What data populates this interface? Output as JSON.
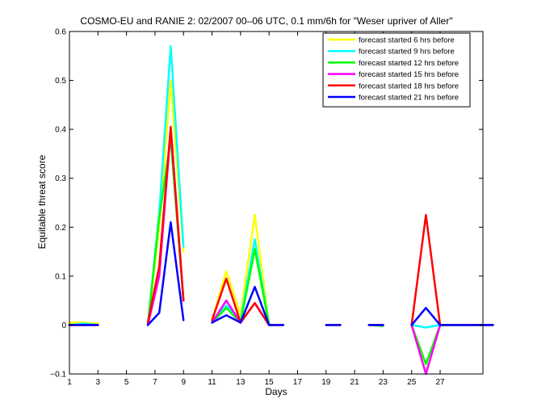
{
  "chart_data": {
    "type": "line",
    "title": "COSMO-EU and RANIE 2: 02/2007 00–06 UTC, 0.1 mm/6h for \"Weser upriver of Aller\"",
    "xlabel": "Days",
    "ylabel": "Equitable threat score",
    "xlim": [
      1,
      30
    ],
    "ylim": [
      -0.1,
      0.6
    ],
    "xticks": [
      1,
      3,
      5,
      7,
      9,
      11,
      13,
      15,
      17,
      19,
      21,
      23,
      25,
      27
    ],
    "yticks": [
      -0.1,
      0,
      0.1,
      0.2,
      0.3,
      0.4,
      0.5,
      0.6
    ],
    "ytick_labels": [
      "−0.1",
      "0",
      "0.1",
      "0.2",
      "0.3",
      "0.4",
      "0.5",
      "0.6"
    ],
    "legend_position": "top-right",
    "series": [
      {
        "name": "forecast started 6 hrs before",
        "color": "#ffff00",
        "segments": [
          [
            [
              1,
              0.005
            ],
            [
              2,
              0.005
            ],
            [
              3,
              0.003
            ]
          ],
          [
            [
              6.5,
              0
            ],
            [
              7.3,
              0.2
            ],
            [
              8.1,
              0.5
            ],
            [
              9,
              0.15
            ]
          ],
          [
            [
              11,
              0.01
            ],
            [
              12,
              0.11
            ],
            [
              13,
              0.02
            ],
            [
              14,
              0.225
            ],
            [
              15,
              0
            ],
            [
              16,
              0
            ]
          ],
          [
            [
              19,
              0
            ],
            [
              20,
              0
            ]
          ],
          [
            [
              22,
              0
            ],
            [
              23,
              0
            ]
          ],
          [
            [
              25,
              0
            ],
            [
              26,
              -0.1
            ],
            [
              27,
              0
            ],
            [
              30.7,
              0
            ]
          ]
        ]
      },
      {
        "name": "forecast started 9 hrs before",
        "color": "#00ffff",
        "segments": [
          [
            [
              1,
              0
            ],
            [
              2,
              0.003
            ],
            [
              3,
              0
            ]
          ],
          [
            [
              6.5,
              0
            ],
            [
              7.3,
              0.23
            ],
            [
              8.1,
              0.57
            ],
            [
              9,
              0.16
            ]
          ],
          [
            [
              11,
              0.01
            ],
            [
              12,
              0.04
            ],
            [
              13,
              0.01
            ],
            [
              14,
              0.175
            ],
            [
              15,
              0
            ],
            [
              16,
              0
            ]
          ],
          [
            [
              19,
              0
            ],
            [
              20,
              0
            ]
          ],
          [
            [
              22,
              0
            ],
            [
              23,
              0
            ]
          ],
          [
            [
              25,
              0
            ],
            [
              26,
              -0.005
            ],
            [
              27,
              0
            ],
            [
              30.7,
              0
            ]
          ]
        ]
      },
      {
        "name": "forecast started 12 hrs before",
        "color": "#00ff00",
        "segments": [
          [
            [
              1,
              0
            ],
            [
              2,
              0
            ],
            [
              3,
              0
            ]
          ],
          [
            [
              6.5,
              0
            ],
            [
              7.3,
              0.22
            ],
            [
              8.1,
              0.38
            ],
            [
              9,
              0.05
            ]
          ],
          [
            [
              11,
              0.005
            ],
            [
              12,
              0.035
            ],
            [
              13,
              0.005
            ],
            [
              14,
              0.155
            ],
            [
              15,
              0
            ],
            [
              16,
              0
            ]
          ],
          [
            [
              19,
              0
            ],
            [
              20,
              0
            ]
          ],
          [
            [
              22,
              0
            ],
            [
              23,
              -0.002
            ]
          ],
          [
            [
              25,
              0
            ],
            [
              26,
              -0.08
            ],
            [
              27,
              0
            ],
            [
              30.7,
              0
            ]
          ]
        ]
      },
      {
        "name": "forecast started 15 hrs before",
        "color": "#ff00ff",
        "segments": [
          [
            [
              1,
              0
            ],
            [
              2,
              0
            ],
            [
              3,
              0
            ]
          ],
          [
            [
              6.5,
              0
            ],
            [
              7.3,
              0.1
            ],
            [
              8.1,
              0.4
            ],
            [
              9,
              0.05
            ]
          ],
          [
            [
              11,
              0.005
            ],
            [
              12,
              0.05
            ],
            [
              13,
              0.005
            ],
            [
              14,
              0.045
            ],
            [
              15,
              0
            ],
            [
              16,
              0
            ]
          ],
          [
            [
              19,
              0
            ],
            [
              20,
              0
            ]
          ],
          [
            [
              22,
              0
            ],
            [
              23,
              0
            ]
          ],
          [
            [
              25,
              0
            ],
            [
              26,
              -0.1
            ],
            [
              27,
              0
            ],
            [
              30.7,
              0
            ]
          ]
        ]
      },
      {
        "name": "forecast started 18 hrs before",
        "color": "#ff0000",
        "segments": [
          [
            [
              1,
              0
            ],
            [
              2,
              0
            ],
            [
              3,
              0
            ]
          ],
          [
            [
              6.5,
              0.005
            ],
            [
              7.3,
              0.12
            ],
            [
              8.1,
              0.405
            ],
            [
              9,
              0.05
            ]
          ],
          [
            [
              11,
              0.01
            ],
            [
              12,
              0.095
            ],
            [
              13,
              0.005
            ],
            [
              14,
              0.045
            ],
            [
              15,
              0
            ],
            [
              16,
              0
            ]
          ],
          [
            [
              19,
              0
            ],
            [
              20,
              0
            ]
          ],
          [
            [
              22,
              0
            ],
            [
              23,
              0
            ]
          ],
          [
            [
              25,
              0
            ],
            [
              26,
              0.225
            ],
            [
              27,
              0
            ],
            [
              30.7,
              0
            ]
          ]
        ]
      },
      {
        "name": "forecast started 21 hrs before",
        "color": "#0000ff",
        "segments": [
          [
            [
              1,
              0
            ],
            [
              2,
              0
            ],
            [
              3,
              0
            ]
          ],
          [
            [
              6.5,
              0
            ],
            [
              7.3,
              0.025
            ],
            [
              8.1,
              0.21
            ],
            [
              9,
              0.01
            ]
          ],
          [
            [
              11,
              0.005
            ],
            [
              12,
              0.02
            ],
            [
              13,
              0.005
            ],
            [
              14,
              0.078
            ],
            [
              15,
              0
            ],
            [
              16,
              0
            ]
          ],
          [
            [
              19,
              0
            ],
            [
              20,
              0
            ]
          ],
          [
            [
              22,
              0
            ],
            [
              23,
              0
            ]
          ],
          [
            [
              25,
              0
            ],
            [
              26,
              0.035
            ],
            [
              27,
              0
            ],
            [
              30.7,
              0
            ]
          ]
        ]
      }
    ]
  }
}
